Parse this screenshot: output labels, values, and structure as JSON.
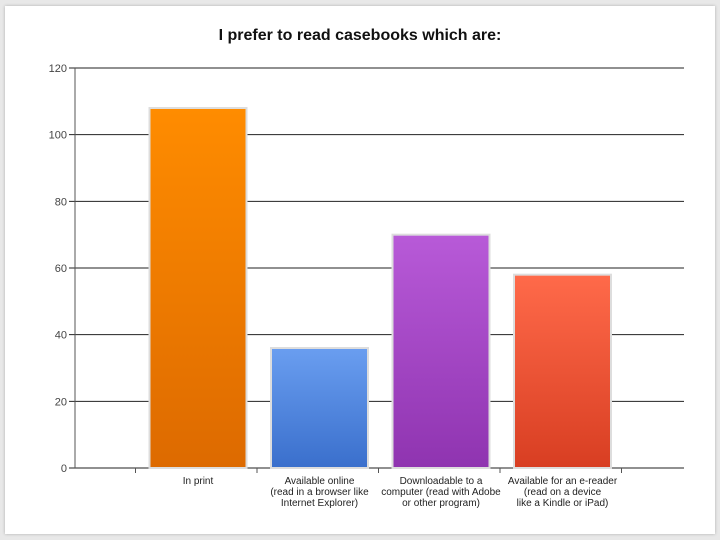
{
  "chart_data": {
    "type": "bar",
    "title": "I prefer to read casebooks which are:",
    "categories": [
      [
        "In print"
      ],
      [
        "Available online",
        "(read in a browser like",
        "Internet Explorer)"
      ],
      [
        "Downloadable to a",
        "computer (read with Adobe",
        "or other program)"
      ],
      [
        "Available for an e-reader",
        "(read on a device",
        "like a Kindle or iPad)"
      ]
    ],
    "values": [
      108,
      36,
      70,
      58
    ],
    "ylim": [
      0,
      120
    ],
    "yticks": [
      0,
      20,
      40,
      60,
      80,
      100,
      120
    ],
    "grid": true,
    "colors": [
      [
        "#ff8c00",
        "#dd6a00"
      ],
      [
        "#6a9ef0",
        "#3a6fcc"
      ],
      [
        "#b85ad8",
        "#8f34b0"
      ],
      [
        "#ff6a4a",
        "#d83e22"
      ]
    ]
  }
}
